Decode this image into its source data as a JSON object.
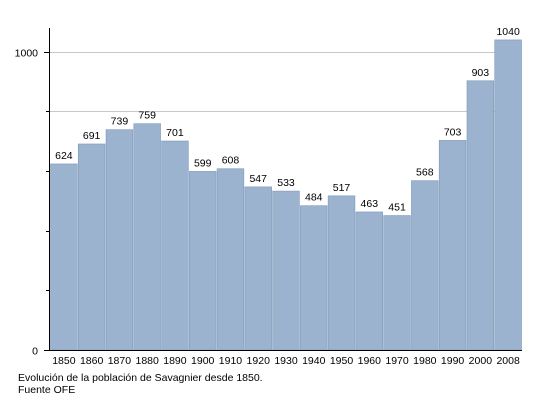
{
  "chart_data": {
    "type": "bar",
    "categories": [
      "1850",
      "1860",
      "1870",
      "1880",
      "1890",
      "1900",
      "1910",
      "1920",
      "1930",
      "1940",
      "1950",
      "1960",
      "1970",
      "1980",
      "1990",
      "2000",
      "2008"
    ],
    "values": [
      624,
      691,
      739,
      759,
      701,
      599,
      608,
      547,
      533,
      484,
      517,
      463,
      451,
      568,
      703,
      903,
      1040
    ],
    "ylim": [
      0,
      1080
    ],
    "yticks_labeled": [
      0,
      1000
    ],
    "yticks_minor": [
      200,
      400,
      600,
      800
    ],
    "grid_lines": [
      800,
      1000
    ],
    "bar_color": "#9bb3cf",
    "bar_stroke": "#7f98b8",
    "grid_color": "#c8c8c8",
    "axis_color": "#000000",
    "data_labels": true
  },
  "caption": {
    "line1": "Evolución de la población de Savagnier desde 1850.",
    "line2": "Fuente OFE"
  }
}
